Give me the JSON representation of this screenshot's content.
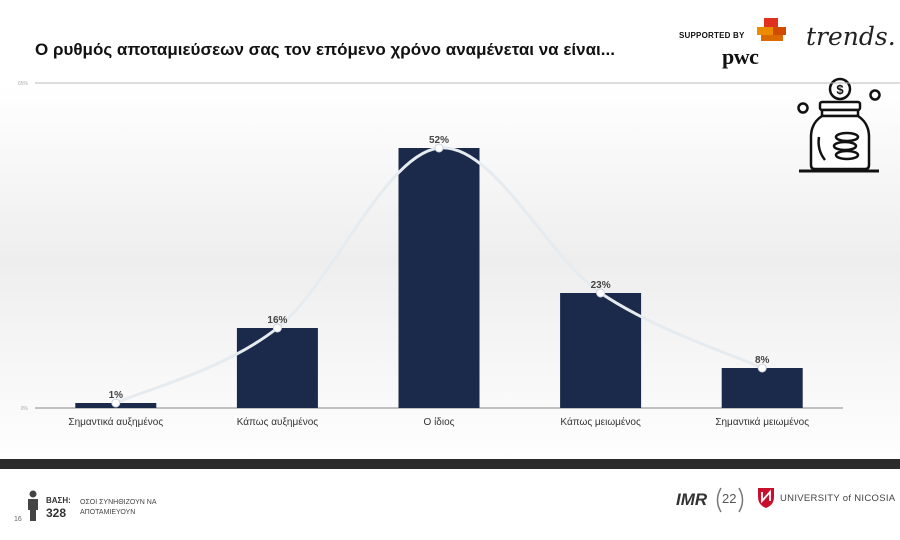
{
  "header": {
    "title": "Ο ρυθμός αποταμιεύσεων σας τον επόμενο χρόνο αναμένεται να είναι...",
    "supported_by": "SUPPORTED BY",
    "pwc_logo": "pwc",
    "trends_logo": "trends."
  },
  "chart_data": {
    "type": "bar",
    "categories": [
      "Σημαντικά αυξημένος",
      "Κάπως αυξημένος",
      "Ο ίδιος",
      "Κάπως μειωμένος",
      "Σημαντικά μειωμένος"
    ],
    "values": [
      1,
      16,
      52,
      23,
      8
    ],
    "data_labels": [
      "1%",
      "16%",
      "52%",
      "23%",
      "8%"
    ],
    "ylim": [
      0,
      65
    ],
    "ytick_labels": [
      "0%",
      "65%"
    ],
    "trend_line": true,
    "colors": {
      "bar": "#1b2a4a",
      "line": "#e6ebf0",
      "axis": "#bbbbbb"
    }
  },
  "footer": {
    "base_label": "ΒΑΣΗ:",
    "base_value": "328",
    "base_desc": "ΟΣΟΙ ΣΥΝΗΘΙΖΟΥΝ ΝΑ ΑΠΟΤΑΜΙΕΥΟΥΝ",
    "page_number": "16",
    "imr_logo": "IMR",
    "anniversary": "22",
    "university": "UNIVERSITY of NICOSIA"
  },
  "icons": [
    "person-icon",
    "savings-jar-icon",
    "pwc-logo-icon",
    "university-logo-icon"
  ]
}
